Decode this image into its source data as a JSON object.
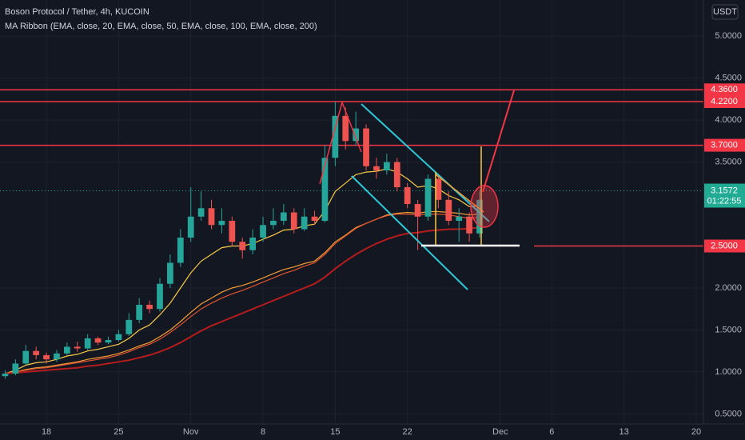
{
  "chart_data": {
    "type": "candlestick",
    "title": "Boson Protocol / Tether, 4h, KUCOIN",
    "subtitle": "MA Ribbon (EMA, close, 20, EMA, close, 50, EMA, close, 100, EMA, close, 200)",
    "currency": "USDT",
    "grid": true,
    "up_color": "#26a69a",
    "down_color": "#ef5350",
    "xlim": [
      -0.5,
      67.7
    ],
    "xticks": [
      {
        "value": 4,
        "label": "18"
      },
      {
        "value": 11,
        "label": "25"
      },
      {
        "value": 18,
        "label": "Nov"
      },
      {
        "value": 25,
        "label": "8"
      },
      {
        "value": 32,
        "label": "15"
      },
      {
        "value": 39,
        "label": "22"
      },
      {
        "value": 48,
        "label": "Dec"
      },
      {
        "value": 53,
        "label": "6"
      },
      {
        "value": 60,
        "label": "13"
      },
      {
        "value": 67,
        "label": "20"
      }
    ],
    "ylim": [
      0.38,
      5.43
    ],
    "yticks": [
      {
        "value": 5,
        "label": "5.0000"
      },
      {
        "value": 4.5,
        "label": "4.5000"
      },
      {
        "value": 4,
        "label": "4.0000"
      },
      {
        "value": 3.5,
        "label": "3.5000"
      },
      {
        "value": 2,
        "label": "2.0000"
      },
      {
        "value": 1.5,
        "label": "1.5000"
      },
      {
        "value": 1,
        "label": "1.0000"
      },
      {
        "value": 0.5,
        "label": "0.5000"
      }
    ],
    "open": [
      0.95,
      0.98,
      1.1,
      1.25,
      1.2,
      1.15,
      1.22,
      1.3,
      1.28,
      1.4,
      1.35,
      1.38,
      1.45,
      1.62,
      1.8,
      1.75,
      2.05,
      2.3,
      2.6,
      2.85,
      2.95,
      2.75,
      2.8,
      2.55,
      2.45,
      2.6,
      2.75,
      2.8,
      2.9,
      2.7,
      2.85,
      2.8,
      3.55,
      4.05,
      3.75,
      3.9,
      3.45,
      3.4,
      3.5,
      3.2,
      3.0,
      2.85,
      3.3,
      3.05,
      2.8,
      2.85,
      2.65
    ],
    "high": [
      1.02,
      1.15,
      1.32,
      1.3,
      1.23,
      1.26,
      1.35,
      1.36,
      1.45,
      1.42,
      1.42,
      1.5,
      1.7,
      1.88,
      1.85,
      2.12,
      2.4,
      2.7,
      3.2,
      3.15,
      3.05,
      2.95,
      2.85,
      2.6,
      2.7,
      2.85,
      2.95,
      3.0,
      2.95,
      2.95,
      2.92,
      3.7,
      4.22,
      4.15,
      4.1,
      3.95,
      3.55,
      3.6,
      3.55,
      3.25,
      3.05,
      3.35,
      3.35,
      3.15,
      2.95,
      2.9,
      3.15
    ],
    "low": [
      0.92,
      0.96,
      1.08,
      1.15,
      1.1,
      1.12,
      1.2,
      1.24,
      1.26,
      1.32,
      1.33,
      1.36,
      1.43,
      1.58,
      1.7,
      1.72,
      2.0,
      2.25,
      2.55,
      2.8,
      2.7,
      2.65,
      2.5,
      2.35,
      2.4,
      2.55,
      2.7,
      2.75,
      2.65,
      2.68,
      2.75,
      2.78,
      3.45,
      3.65,
      3.7,
      3.4,
      3.3,
      3.35,
      3.15,
      2.95,
      2.45,
      2.8,
      2.95,
      2.75,
      2.55,
      2.55,
      2.6
    ],
    "close": [
      0.98,
      1.1,
      1.25,
      1.2,
      1.15,
      1.22,
      1.3,
      1.28,
      1.4,
      1.35,
      1.38,
      1.45,
      1.62,
      1.8,
      1.75,
      2.05,
      2.3,
      2.6,
      2.85,
      2.95,
      2.75,
      2.8,
      2.55,
      2.45,
      2.6,
      2.75,
      2.8,
      2.9,
      2.7,
      2.85,
      2.8,
      3.55,
      4.05,
      3.75,
      3.9,
      3.45,
      3.4,
      3.5,
      3.2,
      3.0,
      2.85,
      3.3,
      3.05,
      2.8,
      2.85,
      2.65,
      3.05
    ],
    "ribbon": [
      {
        "color": "#f7c948",
        "values": [
          0.98,
          1.02,
          1.08,
          1.11,
          1.12,
          1.15,
          1.19,
          1.21,
          1.25,
          1.27,
          1.3,
          1.33,
          1.4,
          1.5,
          1.56,
          1.68,
          1.82,
          2.0,
          2.18,
          2.32,
          2.4,
          2.48,
          2.5,
          2.5,
          2.53,
          2.58,
          2.63,
          2.69,
          2.7,
          2.74,
          2.76,
          2.92,
          3.15,
          3.25,
          3.35,
          3.38,
          3.39,
          3.42,
          3.38,
          3.3,
          3.2,
          3.22,
          3.18,
          3.1,
          3.05,
          2.97,
          2.98
        ]
      },
      {
        "color": "#f39c34",
        "values": [
          0.98,
          1.0,
          1.03,
          1.05,
          1.06,
          1.08,
          1.1,
          1.12,
          1.15,
          1.17,
          1.19,
          1.22,
          1.26,
          1.31,
          1.35,
          1.42,
          1.5,
          1.6,
          1.71,
          1.81,
          1.88,
          1.95,
          2.0,
          2.03,
          2.07,
          2.12,
          2.17,
          2.22,
          2.25,
          2.29,
          2.32,
          2.42,
          2.55,
          2.63,
          2.72,
          2.77,
          2.82,
          2.87,
          2.89,
          2.9,
          2.89,
          2.91,
          2.91,
          2.9,
          2.89,
          2.87,
          2.88
        ]
      },
      {
        "color": "#e0532f",
        "values": [
          0.98,
          1.0,
          1.02,
          1.04,
          1.05,
          1.07,
          1.09,
          1.11,
          1.13,
          1.15,
          1.17,
          1.2,
          1.24,
          1.29,
          1.33,
          1.39,
          1.47,
          1.56,
          1.66,
          1.75,
          1.82,
          1.88,
          1.93,
          1.97,
          2.02,
          2.07,
          2.12,
          2.17,
          2.21,
          2.26,
          2.3,
          2.4,
          2.53,
          2.62,
          2.71,
          2.77,
          2.82,
          2.86,
          2.88,
          2.88,
          2.87,
          2.88,
          2.88,
          2.87,
          2.85,
          2.83,
          2.84
        ]
      },
      {
        "color": "#b71c1c",
        "values": [
          0.98,
          0.99,
          1.0,
          1.01,
          1.02,
          1.03,
          1.04,
          1.05,
          1.07,
          1.08,
          1.1,
          1.12,
          1.14,
          1.17,
          1.2,
          1.24,
          1.29,
          1.35,
          1.42,
          1.49,
          1.55,
          1.6,
          1.65,
          1.7,
          1.75,
          1.8,
          1.85,
          1.9,
          1.95,
          2.0,
          2.05,
          2.13,
          2.23,
          2.32,
          2.4,
          2.47,
          2.53,
          2.58,
          2.62,
          2.65,
          2.66,
          2.68,
          2.69,
          2.7,
          2.7,
          2.71,
          2.72
        ]
      }
    ],
    "levels": [
      {
        "value": 4.36,
        "label": "4.3600"
      },
      {
        "value": 4.22,
        "label": "4.2200"
      },
      {
        "value": 3.7,
        "label": "3.7000"
      },
      {
        "value": 2.5,
        "label": "2.5000"
      }
    ],
    "level_color": "#f23645",
    "last_price": 3.1572,
    "last_price_color": "#22ab94",
    "countdown": "01:22:55"
  }
}
